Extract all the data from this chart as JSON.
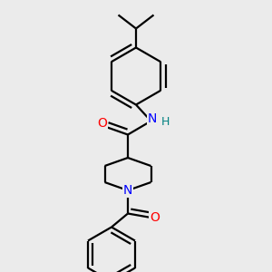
{
  "bg_color": "#ebebeb",
  "atom_colors": {
    "N": "#0000ff",
    "O": "#ff0000",
    "H": "#008080"
  },
  "bond_color": "#000000",
  "bond_width": 1.6,
  "font_size_atoms": 10,
  "font_size_H": 9
}
